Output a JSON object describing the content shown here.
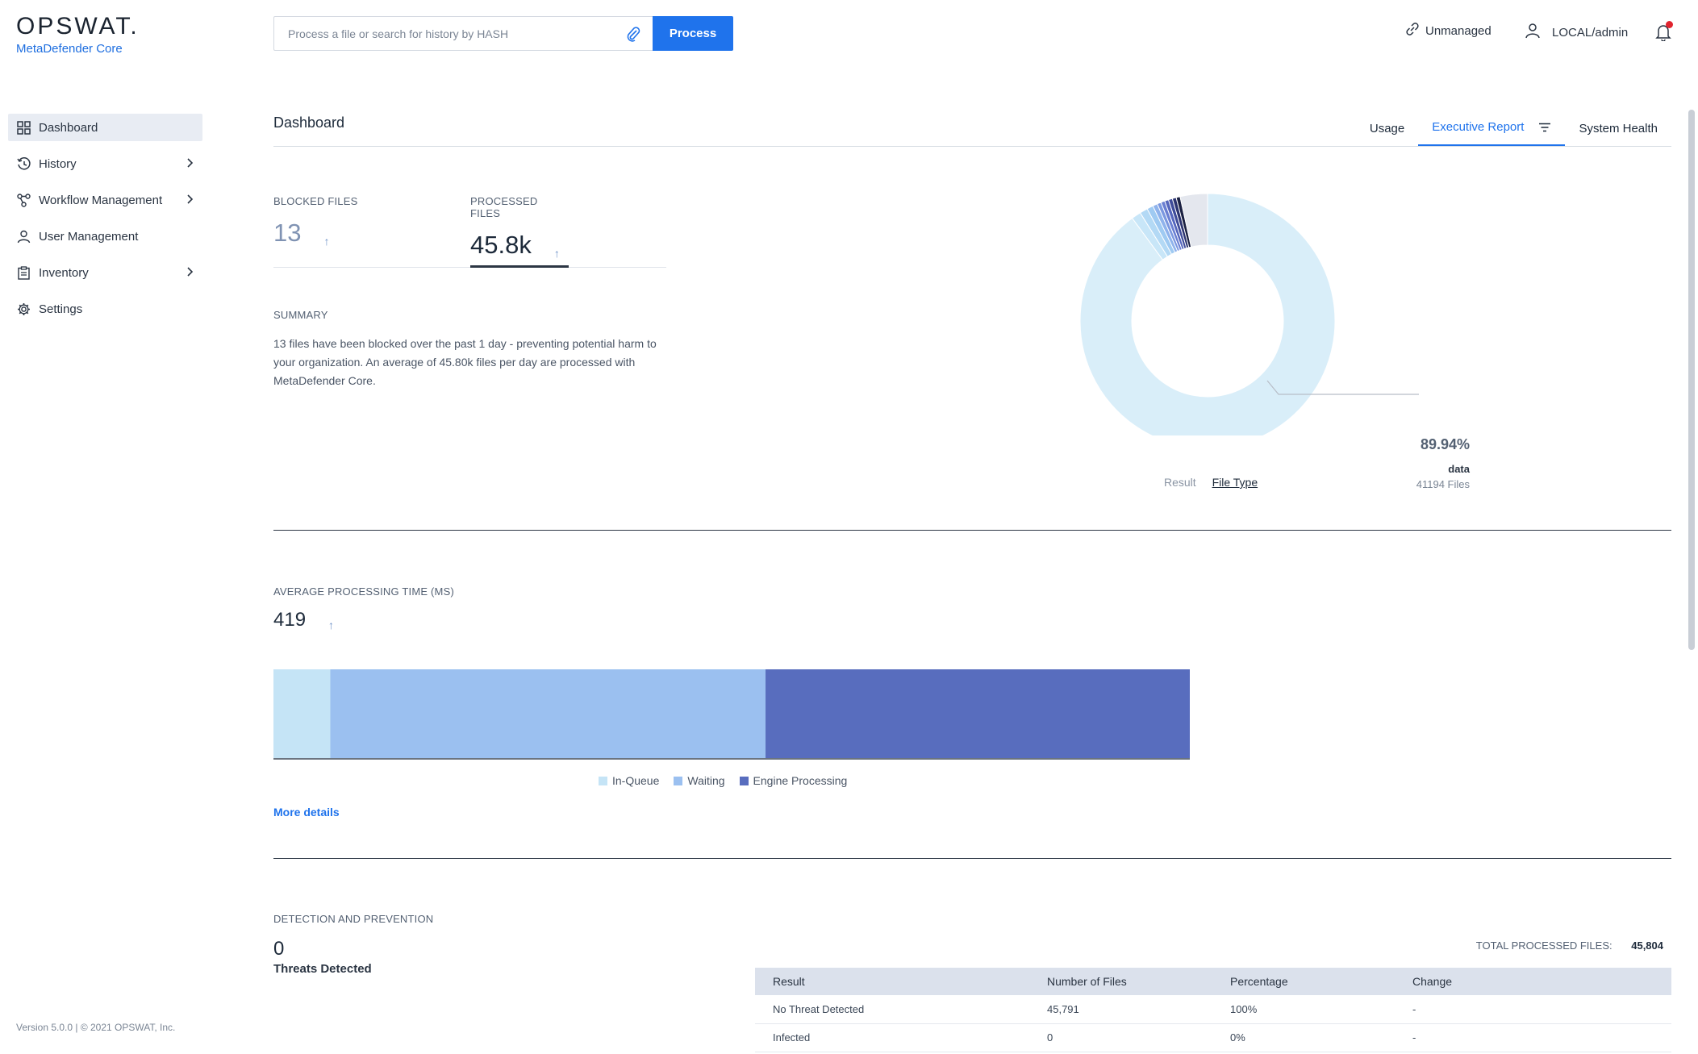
{
  "brand": {
    "name": "OPSWAT.",
    "product": "MetaDefender Core"
  },
  "search": {
    "placeholder": "Process a file or search for history by HASH",
    "value": ""
  },
  "process_button": "Process",
  "topbar": {
    "unmanaged": "Unmanaged",
    "user": "LOCAL/admin"
  },
  "sidebar": {
    "items": [
      {
        "label": "Dashboard",
        "icon": "grid-icon",
        "active": true
      },
      {
        "label": "History",
        "icon": "history-icon",
        "chevron": true
      },
      {
        "label": "Workflow Management",
        "icon": "workflow-icon",
        "chevron": true
      },
      {
        "label": "User Management",
        "icon": "user-icon"
      },
      {
        "label": "Inventory",
        "icon": "clipboard-icon",
        "chevron": true
      },
      {
        "label": "Settings",
        "icon": "gear-icon"
      }
    ],
    "version": "Version 5.0.0 | © 2021 OPSWAT, Inc."
  },
  "page": {
    "title": "Dashboard"
  },
  "tabs": [
    {
      "label": "Usage"
    },
    {
      "label": "Executive Report",
      "active": true
    },
    {
      "label": "System Health"
    }
  ],
  "kpis": {
    "blocked": {
      "label": "BLOCKED FILES",
      "value": "13"
    },
    "processed": {
      "label": "PROCESSED FILES",
      "value": "45.8k"
    }
  },
  "summary": {
    "label": "SUMMARY",
    "text": "13 files have been blocked over the past 1 day - preventing potential harm to your organization. An average of 45.80k files per day are processed with MetaDefender Core."
  },
  "donut": {
    "callout_percent": "89.94%",
    "callout_label": "data",
    "callout_files": "41194 Files",
    "toggle": {
      "result": "Result",
      "file_type": "File Type"
    }
  },
  "processing": {
    "label": "AVERAGE PROCESSING TIME (MS)",
    "value": "419",
    "more_details": "More details",
    "legend": [
      {
        "label": "In-Queue",
        "color": "#c5e4f6"
      },
      {
        "label": "Waiting",
        "color": "#9bc0f0"
      },
      {
        "label": "Engine Processing",
        "color": "#586dbe"
      }
    ]
  },
  "detection": {
    "label": "DETECTION AND PREVENTION",
    "threats_value": "0",
    "threats_label": "Threats Detected",
    "total_label": "TOTAL PROCESSED FILES:",
    "total_value": "45,804",
    "table": {
      "headers": [
        "Result",
        "Number of Files",
        "Percentage",
        "Change"
      ],
      "rows": [
        [
          "No Threat Detected",
          "45,791",
          "100%",
          "-"
        ],
        [
          "Infected",
          "0",
          "0%",
          "-"
        ]
      ]
    }
  },
  "chart_data": [
    {
      "type": "pie",
      "variant": "donut",
      "title": "",
      "slices": [
        {
          "label": "data",
          "value": 89.94,
          "color": "#d9eef9"
        },
        {
          "label": "",
          "value": 1.2,
          "color": "#c8e6f8"
        },
        {
          "label": "",
          "value": 1.0,
          "color": "#b3d9f5"
        },
        {
          "label": "",
          "value": 0.8,
          "color": "#9fcaf2"
        },
        {
          "label": "",
          "value": 0.6,
          "color": "#8fb3ec"
        },
        {
          "label": "",
          "value": 0.5,
          "color": "#7b98e0"
        },
        {
          "label": "",
          "value": 0.5,
          "color": "#6a7fd2"
        },
        {
          "label": "",
          "value": 0.5,
          "color": "#5566bd"
        },
        {
          "label": "",
          "value": 0.5,
          "color": "#3f4c9a"
        },
        {
          "label": "",
          "value": 0.5,
          "color": "#2c3470"
        },
        {
          "label": "",
          "value": 0.5,
          "color": "#1b2142"
        },
        {
          "label": "",
          "value": 3.46,
          "color": "#e4e7ee"
        }
      ]
    },
    {
      "type": "bar",
      "variant": "stacked-horizontal",
      "title": "",
      "categories": [
        "In-Queue",
        "Waiting",
        "Engine Processing"
      ],
      "values": [
        26,
        199,
        196
      ],
      "xlim": [
        0,
        419
      ]
    }
  ]
}
